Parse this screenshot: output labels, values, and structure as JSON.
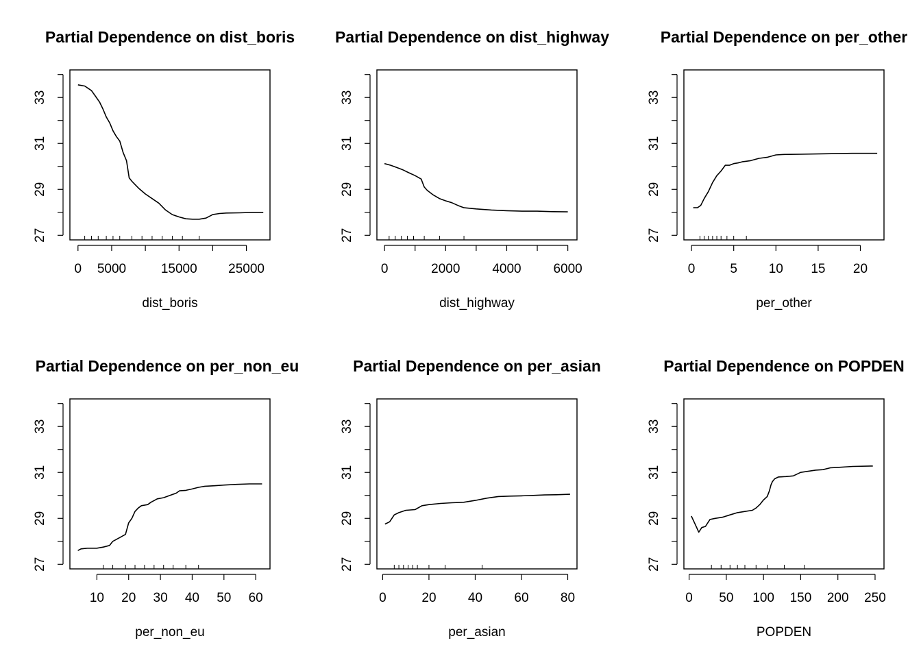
{
  "chart_data": [
    {
      "type": "line",
      "title": "Partial Dependence on dist_boris",
      "xlabel": "dist_boris",
      "ylabel": "",
      "xlim": [
        -1200,
        28500
      ],
      "ylim": [
        26.8,
        34.2
      ],
      "xticks": [
        0,
        5000,
        10000,
        15000,
        20000,
        25000
      ],
      "xtick_labels": [
        "0",
        "5000",
        "",
        "15000",
        "",
        "25000"
      ],
      "yticks": [
        27,
        28,
        29,
        30,
        31,
        32,
        33,
        34
      ],
      "ytick_labels": [
        "27",
        "",
        "29",
        "",
        "31",
        "",
        "33",
        ""
      ],
      "x": [
        0,
        1000,
        2000,
        2600,
        3200,
        3700,
        4200,
        4700,
        5200,
        5700,
        6200,
        6700,
        7200,
        7600,
        8000,
        8500,
        9000,
        10000,
        11000,
        12000,
        13000,
        14000,
        15000,
        16000,
        17000,
        18000,
        19000,
        20000,
        21000,
        22000,
        24000,
        26000,
        27500
      ],
      "y": [
        33.55,
        33.5,
        33.3,
        33.05,
        32.8,
        32.5,
        32.15,
        31.9,
        31.55,
        31.3,
        31.1,
        30.6,
        30.25,
        29.5,
        29.35,
        29.2,
        29.05,
        28.8,
        28.6,
        28.4,
        28.1,
        27.9,
        27.8,
        27.72,
        27.7,
        27.7,
        27.75,
        27.9,
        27.95,
        27.97,
        27.98,
        28.0,
        28.0
      ],
      "rug": [
        1000,
        2000,
        3000,
        4200,
        5200,
        6200,
        8000,
        9500,
        11000,
        12500,
        14000,
        15500,
        18000
      ]
    },
    {
      "type": "line",
      "title": "Partial Dependence on dist_highway",
      "xlabel": "dist_highway",
      "ylabel": "",
      "xlim": [
        -250,
        6300
      ],
      "ylim": [
        26.8,
        34.2
      ],
      "xticks": [
        0,
        1000,
        2000,
        3000,
        4000,
        5000,
        6000
      ],
      "xtick_labels": [
        "0",
        "",
        "2000",
        "",
        "4000",
        "",
        "6000"
      ],
      "yticks": [
        27,
        28,
        29,
        30,
        31,
        32,
        33,
        34
      ],
      "ytick_labels": [
        "27",
        "",
        "29",
        "",
        "31",
        "",
        "33",
        ""
      ],
      "x": [
        0,
        200,
        400,
        600,
        800,
        1000,
        1200,
        1300,
        1400,
        1600,
        1800,
        2000,
        2200,
        2400,
        2600,
        3000,
        3500,
        4000,
        4500,
        5000,
        5500,
        6000
      ],
      "y": [
        30.12,
        30.05,
        29.95,
        29.85,
        29.72,
        29.6,
        29.45,
        29.1,
        28.95,
        28.75,
        28.6,
        28.5,
        28.42,
        28.3,
        28.2,
        28.15,
        28.1,
        28.07,
        28.05,
        28.05,
        28.03,
        28.02
      ],
      "rug": [
        150,
        350,
        550,
        750,
        950,
        1300,
        1800,
        2600
      ]
    },
    {
      "type": "line",
      "title": "Partial Dependence on per_other",
      "xlabel": "per_other",
      "ylabel": "",
      "xlim": [
        -0.9,
        22.8
      ],
      "ylim": [
        26.8,
        34.2
      ],
      "xticks": [
        0,
        5,
        10,
        15,
        20
      ],
      "xtick_labels": [
        "0",
        "5",
        "10",
        "15",
        "20"
      ],
      "yticks": [
        27,
        28,
        29,
        30,
        31,
        32,
        33,
        34
      ],
      "ytick_labels": [
        "27",
        "",
        "29",
        "",
        "31",
        "",
        "33",
        ""
      ],
      "x": [
        0.2,
        0.7,
        1.1,
        1.5,
        2.0,
        2.5,
        3.0,
        3.5,
        4.0,
        4.5,
        5.0,
        5.5,
        6.0,
        7.0,
        8.0,
        9.0,
        10.0,
        11.0,
        13.0,
        16.0,
        19.0,
        22.0
      ],
      "y": [
        28.2,
        28.2,
        28.3,
        28.6,
        28.9,
        29.3,
        29.6,
        29.8,
        30.05,
        30.05,
        30.12,
        30.15,
        30.2,
        30.25,
        30.35,
        30.4,
        30.5,
        30.52,
        30.53,
        30.55,
        30.57,
        30.57
      ],
      "rug": [
        1.0,
        1.5,
        2.0,
        2.5,
        3.0,
        3.5,
        4.2,
        5.0,
        6.5
      ]
    },
    {
      "type": "line",
      "title": "Partial Dependence on per_non_eu",
      "xlabel": "per_non_eu",
      "ylabel": "",
      "xlim": [
        1.5,
        64.5
      ],
      "ylim": [
        26.8,
        34.2
      ],
      "xticks": [
        10,
        20,
        30,
        40,
        50,
        60
      ],
      "xtick_labels": [
        "10",
        "20",
        "30",
        "40",
        "50",
        "60"
      ],
      "yticks": [
        27,
        28,
        29,
        30,
        31,
        32,
        33,
        34
      ],
      "ytick_labels": [
        "27",
        "",
        "29",
        "",
        "31",
        "",
        "33",
        ""
      ],
      "x": [
        4,
        5,
        7,
        10,
        12,
        14,
        15,
        17,
        19,
        20,
        21,
        22,
        23,
        24,
        26,
        27,
        29,
        31,
        33,
        35,
        36,
        38,
        40,
        42,
        44,
        47,
        50,
        54,
        58,
        62
      ],
      "y": [
        27.6,
        27.67,
        27.7,
        27.7,
        27.75,
        27.82,
        28.0,
        28.15,
        28.3,
        28.8,
        29.0,
        29.3,
        29.45,
        29.55,
        29.6,
        29.7,
        29.85,
        29.9,
        30.0,
        30.1,
        30.2,
        30.22,
        30.28,
        30.35,
        30.4,
        30.42,
        30.45,
        30.48,
        30.5,
        30.5
      ],
      "rug": [
        12,
        15,
        19,
        22,
        25,
        28,
        31,
        34,
        38,
        42
      ]
    },
    {
      "type": "line",
      "title": "Partial Dependence on per_asian",
      "xlabel": "per_asian",
      "ylabel": "",
      "xlim": [
        -2.5,
        84
      ],
      "ylim": [
        26.8,
        34.2
      ],
      "xticks": [
        0,
        20,
        40,
        60,
        80
      ],
      "xtick_labels": [
        "0",
        "20",
        "40",
        "60",
        "80"
      ],
      "yticks": [
        27,
        28,
        29,
        30,
        31,
        32,
        33,
        34
      ],
      "ytick_labels": [
        "27",
        "",
        "29",
        "",
        "31",
        "",
        "33",
        ""
      ],
      "x": [
        1,
        3,
        5,
        7,
        10,
        14,
        17,
        20,
        25,
        30,
        35,
        40,
        45,
        50,
        55,
        60,
        65,
        70,
        75,
        81
      ],
      "y": [
        28.75,
        28.85,
        29.15,
        29.25,
        29.35,
        29.38,
        29.55,
        29.6,
        29.65,
        29.68,
        29.7,
        29.78,
        29.88,
        29.95,
        29.97,
        29.98,
        30.0,
        30.02,
        30.03,
        30.05
      ],
      "rug": [
        5,
        7,
        9,
        11,
        13,
        15,
        20,
        27,
        43
      ]
    },
    {
      "type": "line",
      "title": "Partial Dependence on POPDEN",
      "xlabel": "POPDEN",
      "ylabel": "",
      "xlim": [
        -7,
        262
      ],
      "ylim": [
        26.8,
        34.2
      ],
      "xticks": [
        0,
        50,
        100,
        150,
        200,
        250
      ],
      "xtick_labels": [
        "0",
        "50",
        "100",
        "150",
        "200",
        "250"
      ],
      "yticks": [
        27,
        28,
        29,
        30,
        31,
        32,
        33,
        34
      ],
      "ytick_labels": [
        "27",
        "",
        "29",
        "",
        "31",
        "",
        "33",
        ""
      ],
      "x": [
        3,
        8,
        13,
        17,
        22,
        28,
        35,
        45,
        55,
        65,
        75,
        85,
        90,
        95,
        100,
        105,
        108,
        110,
        112,
        115,
        120,
        130,
        140,
        150,
        160,
        170,
        180,
        190,
        200,
        220,
        247
      ],
      "y": [
        29.1,
        28.75,
        28.4,
        28.6,
        28.65,
        28.95,
        29.0,
        29.05,
        29.15,
        29.25,
        29.3,
        29.35,
        29.45,
        29.6,
        29.8,
        29.95,
        30.2,
        30.45,
        30.6,
        30.72,
        30.8,
        30.82,
        30.85,
        31.0,
        31.05,
        31.1,
        31.12,
        31.2,
        31.22,
        31.26,
        31.28
      ],
      "rug": [
        30,
        43,
        55,
        65,
        75,
        90,
        105,
        128,
        155
      ]
    }
  ]
}
